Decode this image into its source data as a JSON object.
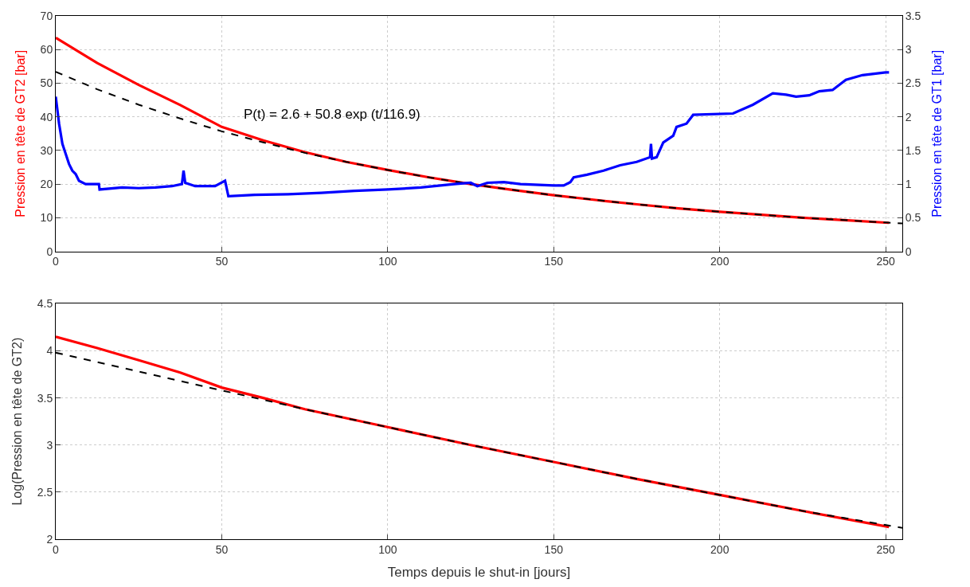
{
  "chart_data": [
    {
      "type": "line",
      "ylabel": "Pression en tête de GT2 [bar]",
      "y2label": "Pression en tête de GT1 [bar]",
      "xlim": [
        0,
        255
      ],
      "xticks": [
        0,
        50,
        100,
        150,
        200,
        250
      ],
      "ylim": [
        0,
        70
      ],
      "yticks": [
        0,
        10,
        20,
        30,
        40,
        50,
        60,
        70
      ],
      "y2lim": [
        0,
        3.5
      ],
      "y2ticks": [
        0,
        0.5,
        1,
        1.5,
        2,
        2.5,
        3,
        3.5
      ],
      "grid": true,
      "annotations": [
        "P(t) = 2.6 + 50.8 exp (t/116.9)"
      ],
      "series": [
        {
          "color": "#0000ff",
          "axis": "y2",
          "line_style": "solid",
          "x": [
            0,
            1,
            2,
            3,
            4,
            5,
            6,
            7,
            9,
            13,
            13.2,
            20,
            25,
            30,
            35,
            38,
            38.5,
            39,
            42,
            48,
            51,
            52,
            60,
            70,
            80,
            90,
            100,
            110,
            120,
            125,
            127,
            130,
            135,
            140,
            150,
            153,
            155,
            156,
            160,
            165,
            170,
            175,
            179,
            179.3,
            179.6,
            181,
            183,
            186,
            187,
            190,
            192,
            204,
            210,
            216,
            220,
            223,
            227,
            230,
            234,
            238,
            243,
            250,
            251
          ],
          "values": [
            2.3,
            1.9,
            1.6,
            1.45,
            1.3,
            1.2,
            1.15,
            1.05,
            1.0,
            1.0,
            0.92,
            0.95,
            0.94,
            0.95,
            0.97,
            1.0,
            1.2,
            1.02,
            0.97,
            0.97,
            1.05,
            0.82,
            0.84,
            0.85,
            0.87,
            0.9,
            0.92,
            0.95,
            1.0,
            1.02,
            0.97,
            1.02,
            1.03,
            1.0,
            0.98,
            0.98,
            1.03,
            1.1,
            1.14,
            1.2,
            1.28,
            1.33,
            1.4,
            1.6,
            1.38,
            1.4,
            1.62,
            1.72,
            1.85,
            1.9,
            2.03,
            2.05,
            2.18,
            2.35,
            2.33,
            2.3,
            2.32,
            2.38,
            2.4,
            2.55,
            2.62,
            2.66,
            2.66
          ]
        },
        {
          "color": "#ff0000",
          "line_style": "solid",
          "x": [
            0,
            12.5,
            25,
            37.5,
            50,
            62.5,
            75,
            87.5,
            100,
            112.5,
            125,
            137.5,
            150,
            162.5,
            175,
            187.5,
            200,
            212.5,
            225,
            237.5,
            251
          ],
          "values": [
            63.5,
            56.0,
            49.5,
            43.5,
            37.0,
            33.0,
            29.5,
            26.6,
            24.2,
            22.0,
            20.0,
            18.3,
            16.7,
            15.3,
            14.0,
            12.8,
            11.8,
            10.9,
            10.0,
            9.3,
            8.5
          ]
        },
        {
          "color": "#000000",
          "line_style": "dashed",
          "x": [
            0,
            12.5,
            25,
            37.5,
            50,
            62.5,
            75,
            87.5,
            100,
            112.5,
            125,
            137.5,
            150,
            162.5,
            175,
            187.5,
            200,
            212.5,
            225,
            237.5,
            250,
            255
          ],
          "values": [
            53.4,
            48.2,
            43.6,
            39.5,
            35.7,
            32.4,
            29.3,
            26.6,
            24.2,
            22.0,
            20.0,
            18.3,
            16.7,
            15.3,
            14.0,
            12.8,
            11.8,
            10.9,
            10.0,
            9.3,
            8.6,
            8.3
          ]
        }
      ]
    },
    {
      "type": "line",
      "xlabel": "Temps depuis le shut-in [jours]",
      "ylabel": "Log(Pression en tête de GT2)",
      "xlim": [
        0,
        255
      ],
      "xticks": [
        0,
        50,
        100,
        150,
        200,
        250
      ],
      "ylim": [
        2,
        4.5
      ],
      "yticks": [
        2,
        2.5,
        3,
        3.5,
        4,
        4.5
      ],
      "grid": true,
      "series": [
        {
          "color": "#ff0000",
          "line_style": "solid",
          "x": [
            0,
            12.5,
            25,
            37.5,
            50,
            62.5,
            75,
            100,
            125,
            150,
            175,
            200,
            225,
            251
          ],
          "values": [
            4.15,
            4.03,
            3.9,
            3.77,
            3.61,
            3.5,
            3.38,
            3.19,
            3.0,
            2.82,
            2.64,
            2.47,
            2.3,
            2.13
          ]
        },
        {
          "color": "#000000",
          "line_style": "dashed",
          "x": [
            0,
            25,
            50,
            75,
            100,
            125,
            150,
            175,
            200,
            225,
            255
          ],
          "values": [
            3.98,
            3.78,
            3.58,
            3.38,
            3.19,
            3.0,
            2.82,
            2.64,
            2.47,
            2.3,
            2.12
          ]
        }
      ]
    }
  ]
}
